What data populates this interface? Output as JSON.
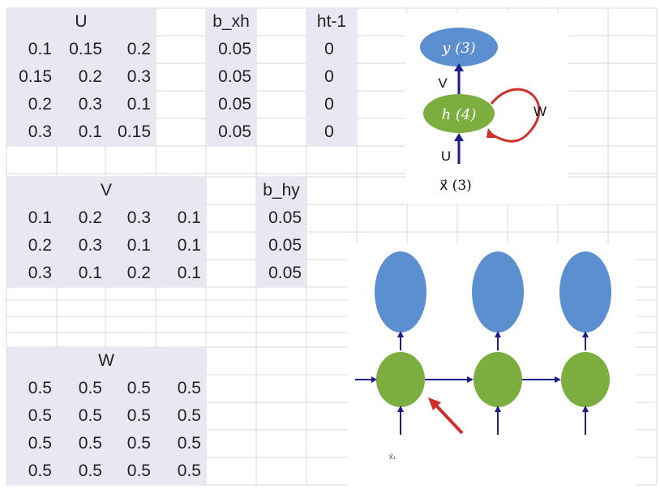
{
  "matrix_U": {
    "header": "U",
    "rows": [
      [
        "0.1",
        "0.15",
        "0.2"
      ],
      [
        "0.15",
        "0.2",
        "0.3"
      ],
      [
        "0.2",
        "0.3",
        "0.1"
      ],
      [
        "0.3",
        "0.1",
        "0.15"
      ]
    ]
  },
  "vector_b_xh": {
    "header": "b_xh",
    "values": [
      "0.05",
      "0.05",
      "0.05",
      "0.05"
    ]
  },
  "vector_ht_1": {
    "header": "ht-1",
    "values": [
      "0",
      "0",
      "0",
      "0"
    ]
  },
  "matrix_V": {
    "header": "V",
    "rows": [
      [
        "0.1",
        "0.2",
        "0.3",
        "0.1"
      ],
      [
        "0.2",
        "0.3",
        "0.1",
        "0.1"
      ],
      [
        "0.3",
        "0.1",
        "0.2",
        "0.1"
      ]
    ]
  },
  "vector_b_hy": {
    "header": "b_hy",
    "values": [
      "0.05",
      "0.05",
      "0.05"
    ]
  },
  "matrix_W": {
    "header": "W",
    "rows": [
      [
        "0.5",
        "0.5",
        "0.5",
        "0.5"
      ],
      [
        "0.5",
        "0.5",
        "0.5",
        "0.5"
      ],
      [
        "0.5",
        "0.5",
        "0.5",
        "0.5"
      ],
      [
        "0.5",
        "0.5",
        "0.5",
        "0.5"
      ]
    ]
  },
  "rnn_cell": {
    "output_label": "y (3)",
    "hidden_label": "h (4)",
    "input_label": "x⃗ (3)",
    "edge_v": "V",
    "edge_w": "W",
    "edge_u": "U"
  },
  "unrolled": {
    "input_label": "x⃗₁"
  },
  "colors": {
    "output_node": "#5b8fd0",
    "hidden_node": "#7cad3f",
    "arrow": "#1c1c8c",
    "pointer": "#d0302a",
    "table_shade": "#e8e8f2",
    "grid_line": "#d9d9d9"
  }
}
